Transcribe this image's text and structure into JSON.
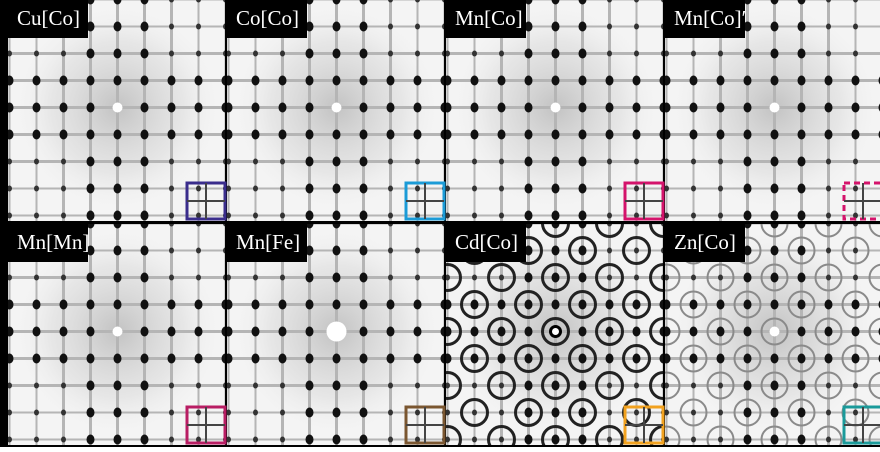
{
  "panels": [
    {
      "label": "Cu[Co]",
      "color": "#3a2d8c"
    },
    {
      "label": "Co[Co]",
      "color": "#1b9bd7"
    },
    {
      "label": "Mn[Co]",
      "color": "#d4136b"
    },
    {
      "label": "Mn[Co]′",
      "color": "#d4136b",
      "dashed": true
    },
    {
      "label": "Mn[Mn]",
      "color": "#b81d63"
    },
    {
      "label": "Mn[Fe]",
      "color": "#7a5630"
    },
    {
      "label": "Cd[Co]",
      "color": "#f2a21f"
    },
    {
      "label": "Zn[Co]",
      "color": "#1a9a9a"
    }
  ]
}
